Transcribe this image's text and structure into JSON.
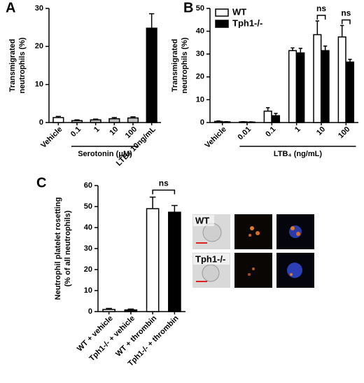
{
  "chart_data": [
    {
      "type": "bar",
      "panel": "A",
      "ylabel": [
        "Transmigrated",
        "neutrophils (%)"
      ],
      "categories": [
        "Vehicle",
        "0.1",
        "1",
        "10",
        "100",
        "LTB₄ 10ng/mL"
      ],
      "values": [
        1.3,
        0.5,
        0.7,
        1.0,
        1.2,
        24.8
      ],
      "errors": [
        0.3,
        0.2,
        0.2,
        0.3,
        0.3,
        3.8
      ],
      "colors": [
        "#ffffff",
        "#bfbfbf",
        "#bfbfbf",
        "#bfbfbf",
        "#bfbfbf",
        "#000000"
      ],
      "group_label": "Serotonin (μM)",
      "ylim": [
        0,
        30
      ],
      "yticks": [
        0,
        10,
        20,
        30
      ]
    },
    {
      "type": "grouped-bar",
      "panel": "B",
      "ylabel": [
        "Transmigrated",
        "neutrophils (%)"
      ],
      "categories": [
        "Vehicle",
        "0.01",
        "0.1",
        "1",
        "10",
        "100"
      ],
      "group_label": "LTB₄ (ng/mL)",
      "series": [
        {
          "name": "WT",
          "color": "#ffffff",
          "values": [
            0.5,
            0.3,
            5,
            31.5,
            38.5,
            37.5
          ],
          "errors": [
            0.2,
            0.1,
            1.5,
            1.2,
            6,
            5
          ]
        },
        {
          "name": "Tph1-/-",
          "color": "#000000",
          "values": [
            0.3,
            0.2,
            3,
            30.5,
            31.5,
            26.5
          ],
          "errors": [
            0.1,
            0.1,
            1,
            2,
            2,
            1.2
          ]
        }
      ],
      "annotations": [
        "ns",
        "ns"
      ],
      "ylim": [
        0,
        50
      ],
      "yticks": [
        0,
        10,
        20,
        30,
        40,
        50
      ]
    },
    {
      "type": "bar",
      "panel": "C",
      "ylabel": [
        "Neutrophil platelet rosetting",
        "(% of all neutrophils)"
      ],
      "categories": [
        "WT + vehicle",
        "Tph1-/- + vehicle",
        "WT + thrombin",
        "Tph1-/- + thrombin"
      ],
      "values": [
        1.0,
        0.8,
        49,
        47.3
      ],
      "errors": [
        0.5,
        0.4,
        5.5,
        3.2
      ],
      "colors": [
        "#ffffff",
        "#000000",
        "#ffffff",
        "#000000"
      ],
      "annotations": [
        "ns"
      ],
      "micrograph_labels": [
        "WT",
        "Tph1-/-"
      ],
      "ylim": [
        0,
        60
      ],
      "yticks": [
        0,
        10,
        20,
        30,
        40,
        50,
        60
      ]
    }
  ]
}
